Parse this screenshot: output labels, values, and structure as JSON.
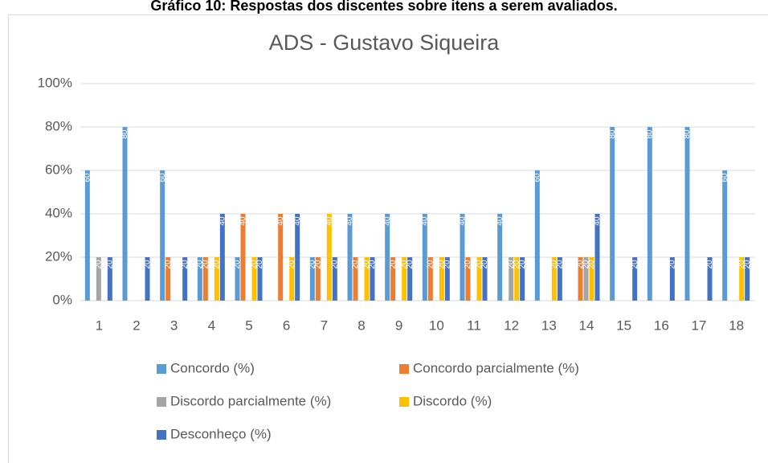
{
  "caption": "Gráfico 10: Respostas dos discentes sobre itens a serem avaliados.",
  "chart_data": {
    "type": "bar",
    "title": "ADS - Gustavo Siqueira",
    "categories": [
      "1",
      "2",
      "3",
      "4",
      "5",
      "6",
      "7",
      "8",
      "9",
      "10",
      "11",
      "12",
      "13",
      "14",
      "15",
      "16",
      "17",
      "18"
    ],
    "series": [
      {
        "name": "Concordo (%)",
        "color": "#5b9bd5",
        "values": [
          60,
          80,
          60,
          20,
          20,
          null,
          20,
          40,
          40,
          40,
          40,
          40,
          60,
          null,
          80,
          80,
          80,
          60
        ]
      },
      {
        "name": "Concordo parcialmente (%)",
        "color": "#ed7d31",
        "values": [
          null,
          null,
          20,
          20,
          40,
          40,
          20,
          20,
          20,
          20,
          20,
          null,
          null,
          20,
          null,
          null,
          null,
          null
        ]
      },
      {
        "name": "Discordo parcialmente (%)",
        "color": "#a5a5a5",
        "values": [
          20,
          null,
          null,
          null,
          null,
          null,
          null,
          null,
          null,
          null,
          null,
          20,
          null,
          20,
          null,
          null,
          null,
          null
        ]
      },
      {
        "name": "Discordo (%)",
        "color": "#ffc000",
        "values": [
          null,
          null,
          null,
          20,
          20,
          20,
          40,
          20,
          20,
          20,
          20,
          20,
          20,
          20,
          null,
          null,
          null,
          20
        ]
      },
      {
        "name": "Desconheço (%)",
        "color": "#4472c4",
        "values": [
          20,
          20,
          20,
          40,
          20,
          40,
          20,
          20,
          20,
          20,
          20,
          20,
          20,
          40,
          20,
          20,
          20,
          20
        ]
      }
    ],
    "ylim": [
      0,
      100
    ],
    "yticks": [
      {
        "value": 0,
        "label": "0%"
      },
      {
        "value": 20,
        "label": "20%"
      },
      {
        "value": 40,
        "label": "40%"
      },
      {
        "value": 60,
        "label": "60%"
      },
      {
        "value": 80,
        "label": "80%"
      },
      {
        "value": 100,
        "label": "100%"
      }
    ],
    "grid": true,
    "legend": "bottom"
  }
}
